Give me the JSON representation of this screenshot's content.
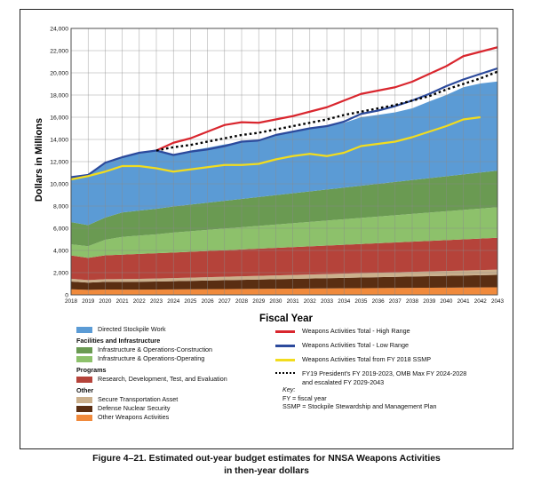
{
  "chart_data": {
    "type": "area",
    "xlabel": "Fiscal Year",
    "ylabel": "Dollars in Millions",
    "x": [
      2018,
      2019,
      2020,
      2021,
      2022,
      2023,
      2024,
      2025,
      2026,
      2027,
      2028,
      2029,
      2030,
      2031,
      2032,
      2033,
      2034,
      2035,
      2036,
      2037,
      2038,
      2039,
      2040,
      2041,
      2042,
      2043
    ],
    "x_tick_labels": [
      "2018",
      "2019",
      "2020",
      "2021",
      "2022",
      "2023",
      "2024",
      "2025",
      "2026",
      "2027",
      "2028",
      "2029",
      "2030",
      "2031",
      "2032",
      "2033",
      "2034",
      "2035",
      "2036",
      "2037",
      "2038",
      "2039",
      "2040",
      "2041",
      "2042",
      "2043"
    ],
    "ylim": [
      0,
      24000
    ],
    "y_ticks": [
      "0",
      "2,000",
      "4,000",
      "6,000",
      "8,000",
      "10,000",
      "12,000",
      "14,000",
      "16,000",
      "18,000",
      "20,000",
      "22,000",
      "24,000"
    ],
    "grid": true,
    "stacked_series": [
      {
        "name": "Other Weapons Activities",
        "color": "#f08a3c",
        "values": [
          500,
          450,
          480,
          470,
          470,
          480,
          490,
          500,
          510,
          520,
          530,
          540,
          550,
          560,
          570,
          580,
          590,
          600,
          610,
          620,
          630,
          640,
          650,
          660,
          670,
          680
        ]
      },
      {
        "name": "Defense Nuclear Security",
        "color": "#5a2e12",
        "values": [
          700,
          650,
          690,
          700,
          710,
          720,
          740,
          760,
          780,
          800,
          820,
          840,
          860,
          880,
          900,
          920,
          940,
          960,
          980,
          1000,
          1020,
          1040,
          1060,
          1080,
          1100,
          1120
        ]
      },
      {
        "name": "Secure Transportation Asset",
        "color": "#cbb08c",
        "values": [
          250,
          230,
          240,
          250,
          260,
          270,
          280,
          290,
          300,
          310,
          320,
          330,
          340,
          350,
          360,
          370,
          380,
          390,
          400,
          410,
          420,
          430,
          440,
          450,
          460,
          470
        ]
      },
      {
        "name": "Research, Development, Test, and Evaluation",
        "color": "#b5433a",
        "values": [
          2100,
          2000,
          2150,
          2200,
          2250,
          2280,
          2300,
          2330,
          2360,
          2390,
          2420,
          2450,
          2480,
          2510,
          2540,
          2570,
          2600,
          2630,
          2660,
          2690,
          2720,
          2750,
          2780,
          2810,
          2840,
          2870
        ]
      },
      {
        "name": "Infrastructure & Operations-Operating",
        "color": "#8dc16b",
        "values": [
          1000,
          1050,
          1400,
          1600,
          1650,
          1700,
          1800,
          1850,
          1900,
          1950,
          2000,
          2050,
          2100,
          2150,
          2200,
          2250,
          2300,
          2350,
          2400,
          2450,
          2500,
          2550,
          2600,
          2650,
          2700,
          2750
        ]
      },
      {
        "name": "Infrastructure & Operations-Construction",
        "color": "#6a9a52",
        "values": [
          2000,
          1900,
          2000,
          2200,
          2250,
          2300,
          2350,
          2400,
          2450,
          2500,
          2550,
          2600,
          2650,
          2700,
          2750,
          2800,
          2850,
          2900,
          2950,
          3000,
          3050,
          3100,
          3150,
          3200,
          3250,
          3300
        ]
      },
      {
        "name": "Directed Stockpile Work",
        "color": "#5b9bd5",
        "values": [
          4050,
          4520,
          4940,
          4930,
          5130,
          5230,
          4600,
          4870,
          4950,
          5080,
          5150,
          5000,
          5420,
          5630,
          5670,
          5710,
          5830,
          6170,
          6210,
          6270,
          6460,
          6910,
          7320,
          7850,
          8020,
          8030
        ]
      }
    ],
    "lines": [
      {
        "name": "Weapons Activities Total - High Range",
        "color": "#d9262e",
        "style": "solid",
        "x": [
          2023,
          2024,
          2025,
          2026,
          2027,
          2028,
          2029,
          2030,
          2031,
          2032,
          2033,
          2034,
          2035,
          2036,
          2037,
          2038,
          2039,
          2040,
          2041,
          2042,
          2043
        ],
        "values": [
          13000,
          13700,
          14100,
          14700,
          15300,
          15550,
          15500,
          15800,
          16100,
          16500,
          16900,
          17500,
          18100,
          18400,
          18700,
          19200,
          19900,
          20600,
          21500,
          21900,
          22300
        ]
      },
      {
        "name": "Weapons Activities Total - Low Range",
        "color": "#2c4a9c",
        "style": "solid",
        "x": [
          2018,
          2019,
          2020,
          2021,
          2022,
          2023,
          2024,
          2025,
          2026,
          2027,
          2028,
          2029,
          2030,
          2031,
          2032,
          2033,
          2034,
          2035,
          2036,
          2037,
          2038,
          2039,
          2040,
          2041,
          2042,
          2043
        ],
        "values": [
          10600,
          10800,
          11900,
          12400,
          12800,
          13000,
          12600,
          12900,
          13100,
          13400,
          13800,
          13900,
          14400,
          14700,
          15000,
          15200,
          15600,
          16300,
          16600,
          17000,
          17500,
          18100,
          18800,
          19400,
          19900,
          20400
        ]
      },
      {
        "name": "Weapons Activities Total from FY 2018 SSMP",
        "color": "#f2dc1e",
        "style": "solid",
        "x": [
          2018,
          2019,
          2020,
          2021,
          2022,
          2023,
          2024,
          2025,
          2026,
          2027,
          2028,
          2029,
          2030,
          2031,
          2032,
          2033,
          2034,
          2035,
          2036,
          2037,
          2038,
          2039,
          2040,
          2041,
          2042
        ],
        "values": [
          10400,
          10700,
          11100,
          11600,
          11600,
          11400,
          11100,
          11300,
          11500,
          11700,
          11700,
          11800,
          12200,
          12500,
          12700,
          12500,
          12800,
          13400,
          13600,
          13800,
          14200,
          14700,
          15200,
          15800,
          16000
        ]
      },
      {
        "name": "FY19 President's FY 2019-2023, OMB Max FY 2024-2028 and escalated FY 2029-2043",
        "color": "#000000",
        "style": "dotted",
        "x": [
          2023,
          2024,
          2025,
          2026,
          2027,
          2028,
          2029,
          2030,
          2031,
          2032,
          2033,
          2034,
          2035,
          2036,
          2037,
          2038,
          2039,
          2040,
          2041,
          2042,
          2043
        ],
        "values": [
          13000,
          13300,
          13500,
          13800,
          14100,
          14400,
          14600,
          14900,
          15200,
          15500,
          15800,
          16200,
          16500,
          16800,
          17100,
          17500,
          17900,
          18500,
          19000,
          19500,
          20100
        ]
      }
    ]
  },
  "legend": {
    "directed": "Directed Stockpile Work",
    "facilities_header": "Facilities and Infrastructure",
    "construction": "Infrastructure & Operations-Construction",
    "operating": "Infrastructure & Operations-Operating",
    "programs_header": "Programs",
    "rdte": "Research, Development, Test, and Evaluation",
    "other_header": "Other",
    "sta": "Secure Transportation Asset",
    "dns": "Defense Nuclear Security",
    "owa": "Other Weapons Activities",
    "high": "Weapons Activities Total - High Range",
    "low": "Weapons Activities Total - Low Range",
    "ssmp": "Weapons Activities Total from FY 2018 SSMP",
    "fy19_line1": "FY19 President's FY 2019-2023, OMB Max FY 2024-2028",
    "fy19_line2": "and escalated FY 2029-2043"
  },
  "key": {
    "title": "Key:",
    "fy": "FY = fiscal year",
    "ssmp": "SSMP = Stockpile Stewardship and Management Plan"
  },
  "caption": {
    "line1": "Figure 4–21.  Estimated out-year budget estimates for NNSA Weapons Activities",
    "line2": "in then-year dollars"
  }
}
